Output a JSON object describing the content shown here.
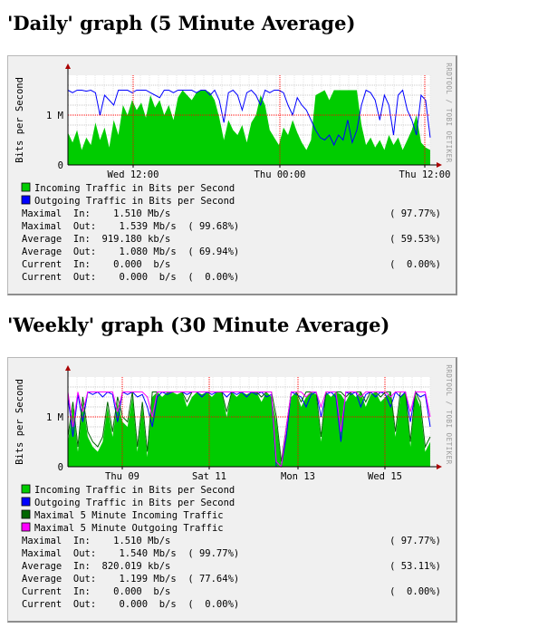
{
  "charts": [
    {
      "heading": "'Daily' graph (5 Minute Average)",
      "chart_data": {
        "type": "area",
        "title": "'Daily' graph (5 Minute Average)",
        "ylabel": "Bits per Second",
        "side_label": "RRDTOOL / TOBI OETIKER",
        "y_ticks": [
          {
            "value": 0,
            "label": "0"
          },
          {
            "value": 1000000,
            "label": "1 M"
          }
        ],
        "ylim": [
          0,
          1800000
        ],
        "x_ticks": [
          {
            "pos": 0.18,
            "label": "Wed 12:00"
          },
          {
            "pos": 0.585,
            "label": "Thu 00:00"
          },
          {
            "pos": 0.985,
            "label": "Thu 12:00"
          }
        ],
        "grid": true,
        "series": [
          {
            "name": "Incoming Traffic in Bits per Second",
            "color": "#00cc00",
            "style": "area",
            "values": [
              0.65,
              0.45,
              0.7,
              0.3,
              0.55,
              0.4,
              0.85,
              0.5,
              0.75,
              0.35,
              0.9,
              0.6,
              1.2,
              1.0,
              1.3,
              1.1,
              1.25,
              0.95,
              1.4,
              1.15,
              1.3,
              1.0,
              1.2,
              0.9,
              1.35,
              1.5,
              1.4,
              1.3,
              1.45,
              1.5,
              1.5,
              1.45,
              1.3,
              0.95,
              0.5,
              0.9,
              0.7,
              0.6,
              0.8,
              0.45,
              0.85,
              1.0,
              1.4,
              1.2,
              0.7,
              0.55,
              0.4,
              0.75,
              0.6,
              0.9,
              0.65,
              0.45,
              0.3,
              0.5,
              1.4,
              1.45,
              1.5,
              1.3,
              1.5,
              1.5,
              1.5,
              1.5,
              1.5,
              1.5,
              0.8,
              0.4,
              0.55,
              0.35,
              0.5,
              0.3,
              0.6,
              0.4,
              0.55,
              0.3,
              0.5,
              0.7,
              1.0,
              0.45,
              0.35,
              0.3
            ]
          },
          {
            "name": "Outgoing Traffic in Bits per Second",
            "color": "#0000ff",
            "style": "line",
            "values": [
              1.5,
              1.45,
              1.5,
              1.5,
              1.48,
              1.5,
              1.45,
              1.0,
              1.4,
              1.3,
              1.2,
              1.5,
              1.5,
              1.5,
              1.45,
              1.5,
              1.5,
              1.5,
              1.45,
              1.4,
              1.35,
              1.5,
              1.5,
              1.45,
              1.5,
              1.5,
              1.5,
              1.5,
              1.45,
              1.5,
              1.5,
              1.4,
              1.5,
              1.3,
              0.85,
              1.45,
              1.5,
              1.4,
              1.1,
              1.45,
              1.5,
              1.4,
              1.2,
              1.5,
              1.45,
              1.5,
              1.5,
              1.45,
              1.2,
              1.0,
              1.35,
              1.2,
              1.1,
              0.9,
              0.7,
              0.55,
              0.5,
              0.6,
              0.4,
              0.6,
              0.5,
              0.9,
              0.45,
              0.7,
              1.2,
              1.5,
              1.45,
              1.3,
              0.9,
              1.4,
              1.2,
              0.6,
              1.4,
              1.5,
              1.1,
              0.9,
              0.6,
              1.4,
              1.3,
              0.55
            ]
          }
        ]
      },
      "legend": [
        {
          "label": "Incoming Traffic in Bits per Second",
          "color": "#00cc00"
        },
        {
          "label": "Outgoing Traffic in Bits per Second",
          "color": "#0000ff"
        }
      ],
      "stats": [
        {
          "left": "Maximal  In:    1.510 Mb/s",
          "right": "( 97.77%)"
        },
        {
          "left": "Maximal  Out:    1.539 Mb/s  ( 99.68%)",
          "right": ""
        },
        {
          "left": "Average  In:  919.180 kb/s",
          "right": "( 59.53%)"
        },
        {
          "left": "Average  Out:    1.080 Mb/s  ( 69.94%)",
          "right": ""
        },
        {
          "left": "Current  In:    0.000  b/s",
          "right": "(  0.00%)"
        },
        {
          "left": "Current  Out:    0.000  b/s  (  0.00%)",
          "right": ""
        }
      ]
    },
    {
      "heading": "'Weekly' graph (30 Minute Average)",
      "chart_data": {
        "type": "area",
        "title": "'Weekly' graph (30 Minute Average)",
        "ylabel": "Bits per Second",
        "side_label": "RRDTOOL / TOBI OETIKER",
        "y_ticks": [
          {
            "value": 0,
            "label": "0"
          },
          {
            "value": 1000000,
            "label": "1 M"
          }
        ],
        "ylim": [
          0,
          1800000
        ],
        "x_ticks": [
          {
            "pos": 0.15,
            "label": "Thu 09"
          },
          {
            "pos": 0.39,
            "label": "Sat 11"
          },
          {
            "pos": 0.635,
            "label": "Mon 13"
          },
          {
            "pos": 0.875,
            "label": "Wed 15"
          }
        ],
        "grid": true,
        "series": [
          {
            "name": "Incoming Traffic in Bits per Second",
            "color": "#00cc00",
            "style": "area",
            "values": [
              0.5,
              1.2,
              0.3,
              1.3,
              0.6,
              0.4,
              0.3,
              0.5,
              1.2,
              0.6,
              1.3,
              0.9,
              0.8,
              1.4,
              0.3,
              1.2,
              0.2,
              1.4,
              1.5,
              1.4,
              1.5,
              1.5,
              1.45,
              1.5,
              1.2,
              1.4,
              1.5,
              1.45,
              1.5,
              1.4,
              1.5,
              1.5,
              1.0,
              1.5,
              1.4,
              1.5,
              1.45,
              1.5,
              1.5,
              1.3,
              1.5,
              1.4,
              0.9,
              0.05,
              0.7,
              1.4,
              1.5,
              1.2,
              1.4,
              1.5,
              1.45,
              0.5,
              1.5,
              1.4,
              1.5,
              1.45,
              1.3,
              1.5,
              1.4,
              1.5,
              1.2,
              1.45,
              1.5,
              1.3,
              1.4,
              1.5,
              0.6,
              1.4,
              1.5,
              0.4,
              1.45,
              1.2,
              0.3,
              0.5
            ]
          },
          {
            "name": "Outgoing Traffic in Bits per Second",
            "color": "#0000ff",
            "style": "line",
            "values": [
              1.4,
              0.6,
              1.45,
              0.9,
              1.5,
              1.45,
              1.5,
              1.4,
              1.5,
              1.45,
              0.9,
              1.5,
              1.45,
              1.5,
              1.4,
              1.45,
              1.2,
              0.8,
              1.4,
              1.5,
              1.45,
              1.5,
              1.5,
              1.5,
              1.45,
              1.5,
              1.5,
              1.4,
              1.5,
              1.45,
              1.5,
              1.5,
              1.4,
              1.5,
              1.45,
              1.5,
              1.4,
              1.5,
              1.45,
              1.5,
              1.4,
              1.45,
              0.0,
              0.0,
              0.6,
              1.5,
              1.45,
              1.4,
              1.2,
              1.45,
              1.5,
              1.0,
              1.45,
              1.5,
              1.4,
              0.5,
              1.5,
              1.45,
              1.5,
              1.2,
              1.45,
              1.5,
              1.4,
              1.5,
              1.45,
              1.2,
              1.5,
              1.4,
              1.5,
              0.9,
              1.5,
              1.4,
              1.45,
              0.8
            ]
          },
          {
            "name": "Maximal 5 Minute Incoming Traffic",
            "color": "#006600",
            "style": "line",
            "values": [
              0.6,
              1.3,
              0.4,
              1.4,
              0.7,
              0.5,
              0.4,
              0.6,
              1.3,
              0.7,
              1.4,
              1.0,
              0.9,
              1.5,
              0.4,
              1.3,
              0.3,
              1.5,
              1.5,
              1.5,
              1.5,
              1.5,
              1.5,
              1.5,
              1.3,
              1.5,
              1.5,
              1.5,
              1.5,
              1.5,
              1.5,
              1.5,
              1.1,
              1.5,
              1.5,
              1.5,
              1.5,
              1.5,
              1.5,
              1.4,
              1.5,
              1.5,
              1.0,
              0.1,
              0.8,
              1.5,
              1.5,
              1.3,
              1.5,
              1.5,
              1.5,
              0.6,
              1.5,
              1.5,
              1.5,
              1.5,
              1.4,
              1.5,
              1.5,
              1.5,
              1.3,
              1.5,
              1.5,
              1.4,
              1.5,
              1.5,
              0.7,
              1.5,
              1.5,
              0.5,
              1.5,
              1.3,
              0.4,
              0.6
            ]
          },
          {
            "name": "Maximal 5 Minute Outgoing Traffic",
            "color": "#ff00ff",
            "style": "line",
            "values": [
              1.5,
              0.8,
              1.5,
              1.1,
              1.5,
              1.5,
              1.5,
              1.5,
              1.5,
              1.5,
              1.1,
              1.5,
              1.5,
              1.5,
              1.5,
              1.5,
              1.4,
              1.0,
              1.5,
              1.5,
              1.5,
              1.5,
              1.5,
              1.5,
              1.5,
              1.5,
              1.5,
              1.5,
              1.5,
              1.5,
              1.5,
              1.5,
              1.5,
              1.5,
              1.5,
              1.5,
              1.5,
              1.5,
              1.5,
              1.5,
              1.5,
              1.5,
              0.1,
              0.0,
              0.8,
              1.5,
              1.5,
              1.5,
              1.4,
              1.5,
              1.5,
              1.2,
              1.5,
              1.5,
              1.5,
              0.7,
              1.5,
              1.5,
              1.5,
              1.4,
              1.5,
              1.5,
              1.5,
              1.5,
              1.5,
              1.4,
              1.5,
              1.5,
              1.5,
              1.1,
              1.5,
              1.5,
              1.5,
              1.0
            ]
          }
        ]
      },
      "legend": [
        {
          "label": "Incoming Traffic in Bits per Second",
          "color": "#00cc00"
        },
        {
          "label": "Outgoing Traffic in Bits per Second",
          "color": "#0000ff"
        },
        {
          "label": "Maximal 5 Minute Incoming Traffic",
          "color": "#006600"
        },
        {
          "label": "Maximal 5 Minute Outgoing Traffic",
          "color": "#ff00ff"
        }
      ],
      "stats": [
        {
          "left": "Maximal  In:    1.510 Mb/s",
          "right": "( 97.77%)"
        },
        {
          "left": "Maximal  Out:    1.540 Mb/s  ( 99.77%)",
          "right": ""
        },
        {
          "left": "Average  In:  820.019 kb/s",
          "right": "( 53.11%)"
        },
        {
          "left": "Average  Out:    1.199 Mb/s  ( 77.64%)",
          "right": ""
        },
        {
          "left": "Current  In:    0.000  b/s",
          "right": "(  0.00%)"
        },
        {
          "left": "Current  Out:    0.000  b/s  (  0.00%)",
          "right": ""
        }
      ]
    }
  ]
}
